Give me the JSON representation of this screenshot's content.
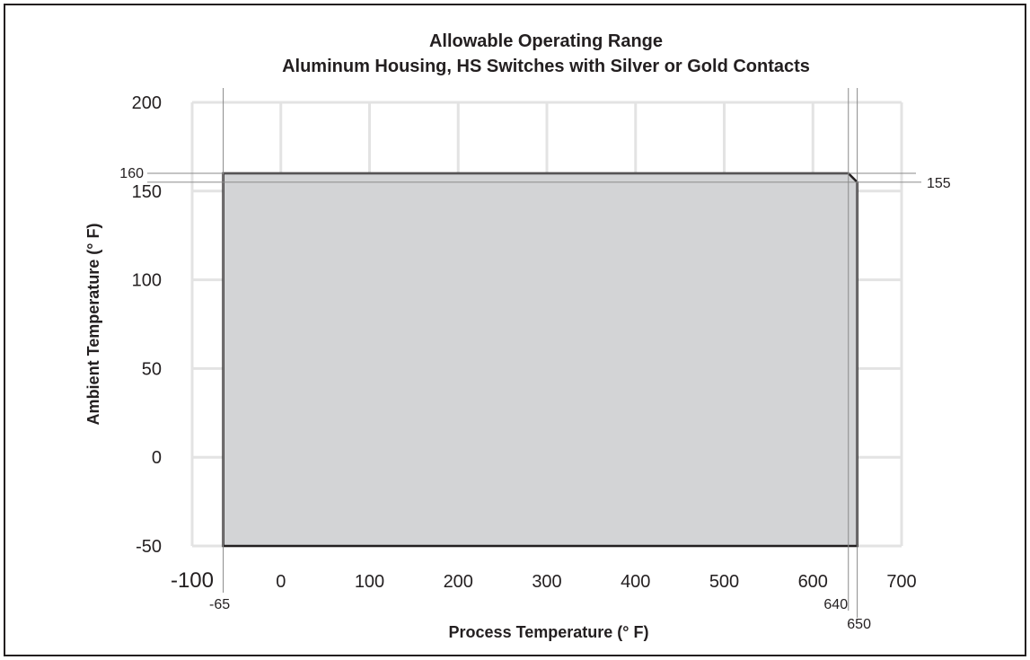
{
  "chart_data": {
    "type": "area",
    "title": "Allowable Operating Range",
    "subtitle": "Aluminum Housing, HS Switches with Silver or Gold Contacts",
    "xlabel": "Process Temperature (° F)",
    "ylabel": "Ambient Temperature (° F)",
    "xlim": [
      -100,
      700
    ],
    "ylim": [
      -50,
      200
    ],
    "x_ticks": [
      -100,
      0,
      100,
      200,
      300,
      400,
      500,
      600,
      700
    ],
    "y_ticks": [
      -50,
      0,
      50,
      100,
      150,
      200
    ],
    "grid": true,
    "region": {
      "x": [
        -65,
        640,
        650,
        650,
        -65
      ],
      "y": [
        160,
        160,
        155,
        -50,
        -50
      ]
    },
    "markers": {
      "x": [
        {
          "value": -65,
          "label": "-65"
        },
        {
          "value": 640,
          "label": "640"
        },
        {
          "value": 650,
          "label": "650"
        }
      ],
      "y": [
        {
          "value": 160,
          "label": "160"
        },
        {
          "value": 155,
          "label": "155"
        }
      ]
    },
    "colors": {
      "fill": "#d3d4d6",
      "outline": "#231f20",
      "grid": "#e3e3e3",
      "reference_lines": "#8a8a8a"
    }
  }
}
